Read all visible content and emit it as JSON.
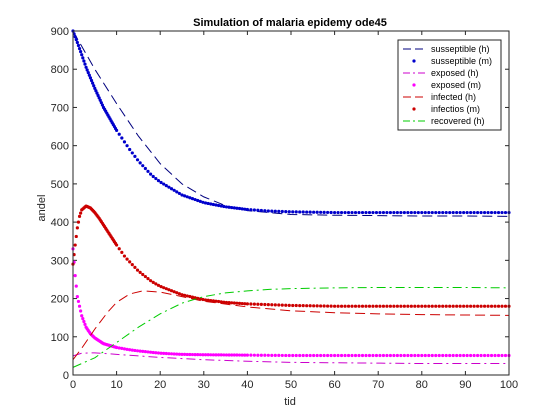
{
  "chart_data": {
    "type": "line",
    "title": "Simulation of malaria epidemy ode45",
    "xlabel": "tid",
    "ylabel": "andel",
    "xlim": [
      0,
      100
    ],
    "ylim": [
      0,
      900
    ],
    "xticks": [
      0,
      10,
      20,
      30,
      40,
      50,
      60,
      70,
      80,
      90,
      100
    ],
    "yticks": [
      0,
      100,
      200,
      300,
      400,
      500,
      600,
      700,
      800,
      900
    ],
    "grid": false,
    "legend_position": "top-right",
    "series": [
      {
        "name": "susseptible (h)",
        "color": "#00007f",
        "style": "dashed",
        "x": [
          0,
          2,
          5,
          10,
          15,
          20,
          25,
          30,
          35,
          40,
          50,
          60,
          70,
          80,
          90,
          100
        ],
        "y": [
          900,
          860,
          800,
          710,
          625,
          553,
          500,
          466,
          443,
          430,
          420,
          418,
          417,
          416,
          416,
          415
        ]
      },
      {
        "name": "susseptible (m)",
        "color": "#0000cc",
        "style": "dots",
        "x": [
          0,
          1,
          2,
          3,
          5,
          7,
          10,
          13,
          15,
          18,
          20,
          25,
          30,
          35,
          40,
          45,
          50,
          60,
          70,
          80,
          90,
          100
        ],
        "y": [
          900,
          870,
          838,
          805,
          750,
          700,
          640,
          590,
          560,
          523,
          505,
          471,
          451,
          440,
          433,
          429,
          427,
          425,
          425,
          425,
          425,
          425
        ]
      },
      {
        "name": "exposed (h)",
        "color": "#cc00cc",
        "style": "dashdot",
        "x": [
          0,
          2,
          5,
          10,
          20,
          30,
          40,
          50,
          60,
          70,
          80,
          90,
          100
        ],
        "y": [
          50,
          57,
          58,
          54,
          46,
          40,
          36,
          33,
          32,
          31,
          30,
          30,
          30
        ]
      },
      {
        "name": "exposed (m)",
        "color": "#ff00ff",
        "style": "dots",
        "x": [
          0,
          0.5,
          1,
          2,
          3,
          4,
          5,
          7,
          10,
          13,
          15,
          20,
          25,
          30,
          40,
          50,
          60,
          70,
          80,
          90,
          100
        ],
        "y": [
          330,
          260,
          205,
          155,
          125,
          108,
          97,
          82,
          72,
          66,
          63,
          57,
          54,
          53,
          52,
          51,
          51,
          51,
          51,
          51,
          51
        ]
      },
      {
        "name": "infected (h)",
        "color": "#cc0000",
        "style": "dashed",
        "x": [
          0,
          2,
          5,
          8,
          10,
          13,
          16,
          20,
          25,
          30,
          40,
          50,
          60,
          70,
          80,
          90,
          100
        ],
        "y": [
          40,
          70,
          120,
          165,
          190,
          212,
          220,
          217,
          205,
          193,
          178,
          168,
          163,
          160,
          158,
          157,
          156
        ]
      },
      {
        "name": "infectios (m)",
        "color": "#cc0000",
        "style": "dots",
        "x": [
          0,
          0.5,
          1,
          1.5,
          2,
          3,
          4,
          5,
          6,
          8,
          10,
          12,
          15,
          18,
          20,
          25,
          30,
          35,
          40,
          50,
          60,
          70,
          80,
          90,
          100
        ],
        "y": [
          290,
          340,
          385,
          415,
          432,
          442,
          437,
          425,
          410,
          375,
          340,
          308,
          272,
          245,
          232,
          210,
          197,
          190,
          186,
          182,
          180,
          180,
          180,
          180,
          180
        ]
      },
      {
        "name": "recovered (h)",
        "color": "#00cc00",
        "style": "dashdot",
        "x": [
          0,
          5,
          10,
          15,
          20,
          25,
          30,
          35,
          40,
          45,
          50,
          60,
          70,
          80,
          90,
          100
        ],
        "y": [
          20,
          45,
          85,
          125,
          160,
          188,
          205,
          215,
          220,
          224,
          226,
          228,
          229,
          229,
          229,
          228
        ]
      }
    ]
  }
}
